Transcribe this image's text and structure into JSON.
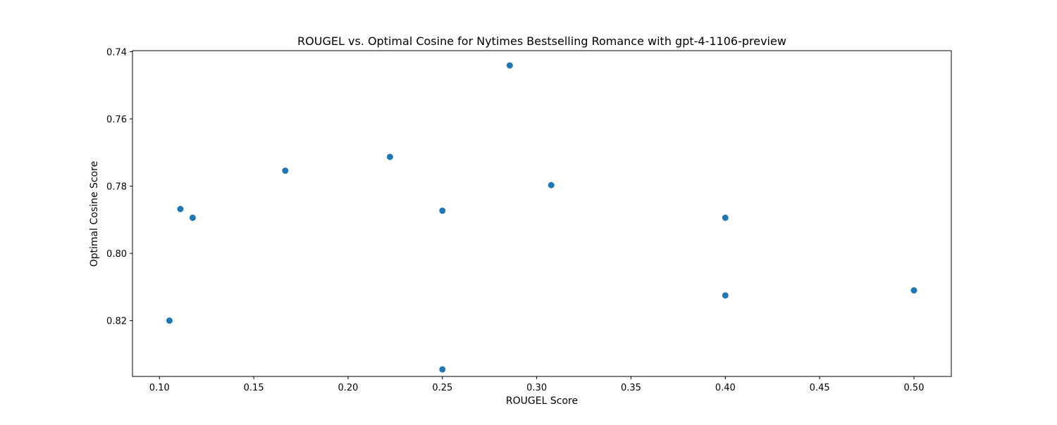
{
  "chart_data": {
    "type": "scatter",
    "title": "ROUGEL vs. Optimal Cosine for Nytimes Bestselling Romance with gpt-4-1106-preview",
    "xlabel": "ROUGEL Score",
    "ylabel": "Optimal Cosine Score",
    "xlim": [
      0.0857,
      0.5198
    ],
    "ylim": [
      0.7397,
      0.8366
    ],
    "y_inverted": true,
    "grid": false,
    "xticks": [
      0.1,
      0.15,
      0.2,
      0.25,
      0.3,
      0.35,
      0.4,
      0.45,
      0.5
    ],
    "xtick_labels": [
      "0.10",
      "0.15",
      "0.20",
      "0.25",
      "0.30",
      "0.35",
      "0.40",
      "0.45",
      "0.50"
    ],
    "yticks": [
      0.74,
      0.76,
      0.78,
      0.8,
      0.82
    ],
    "ytick_labels": [
      "0.74",
      "0.76",
      "0.78",
      "0.80",
      "0.82"
    ],
    "marker_color": "#1f77b4",
    "points": [
      {
        "x": 0.2857,
        "y": 0.7441
      },
      {
        "x": 0.2222,
        "y": 0.7713
      },
      {
        "x": 0.1667,
        "y": 0.7754
      },
      {
        "x": 0.3077,
        "y": 0.7797
      },
      {
        "x": 0.1111,
        "y": 0.7868
      },
      {
        "x": 0.25,
        "y": 0.7873
      },
      {
        "x": 0.1176,
        "y": 0.7894
      },
      {
        "x": 0.4,
        "y": 0.7894
      },
      {
        "x": 0.5,
        "y": 0.811
      },
      {
        "x": 0.4,
        "y": 0.8125
      },
      {
        "x": 0.1053,
        "y": 0.82
      },
      {
        "x": 0.25,
        "y": 0.8345
      }
    ]
  }
}
